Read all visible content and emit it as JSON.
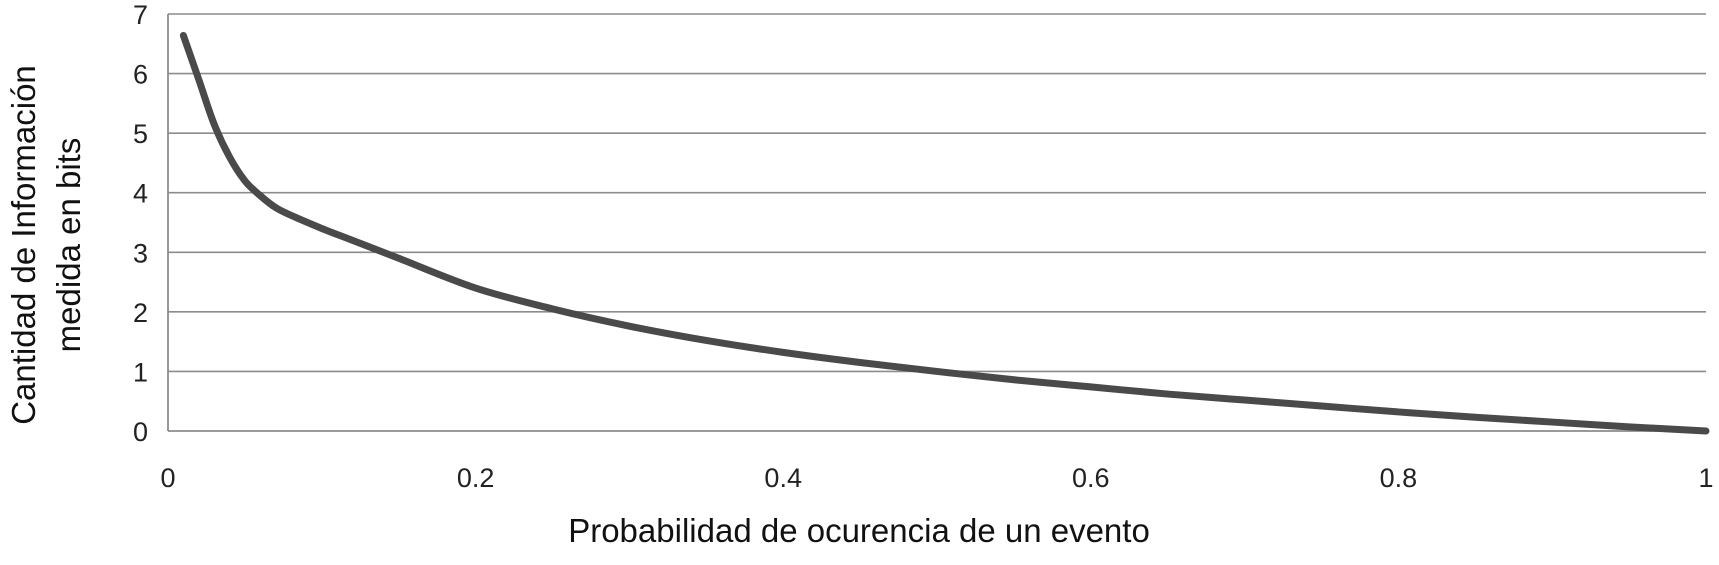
{
  "chart_data": {
    "type": "line",
    "title": "",
    "xlabel": "Probabilidad de ocurencia de un evento",
    "ylabel_lines": [
      "Cantidad de Información",
      "medida en bits"
    ],
    "xlim": [
      0,
      1
    ],
    "ylim": [
      0,
      7
    ],
    "x_ticks": [
      "0",
      "0.2",
      "0.4",
      "0.6",
      "0.8",
      "1"
    ],
    "y_ticks": [
      "0",
      "1",
      "2",
      "3",
      "4",
      "5",
      "6",
      "7"
    ],
    "grid": true,
    "legend": "none",
    "series": [
      {
        "x": [
          0.01,
          0.02,
          0.03,
          0.04,
          0.05,
          0.06,
          0.07,
          0.08,
          0.1,
          0.12,
          0.15,
          0.2,
          0.25,
          0.3,
          0.35,
          0.4,
          0.45,
          0.5,
          0.55,
          0.6,
          0.65,
          0.7,
          0.75,
          0.8,
          0.85,
          0.9,
          0.95,
          1.0
        ],
        "y": [
          6.64,
          5.9,
          5.15,
          4.6,
          4.2,
          3.95,
          3.75,
          3.62,
          3.4,
          3.2,
          2.9,
          2.4,
          2.05,
          1.76,
          1.52,
          1.32,
          1.15,
          1.0,
          0.86,
          0.74,
          0.62,
          0.52,
          0.42,
          0.32,
          0.23,
          0.15,
          0.07,
          0.0
        ]
      }
    ],
    "colors": {
      "line": "#4a4a4a",
      "grid": "#8c8c8c",
      "axis": "#8c8c8c",
      "text": "#111111"
    }
  }
}
